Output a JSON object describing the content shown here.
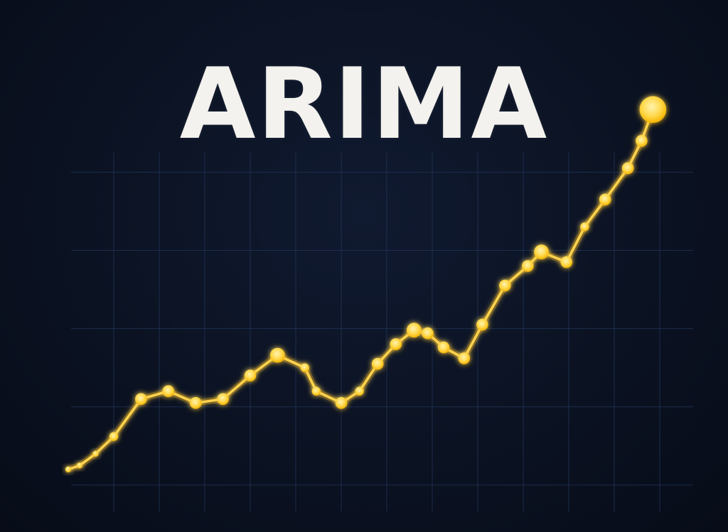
{
  "title": "ARIMA",
  "colors": {
    "background": "#0b1222",
    "title": "#f4f2ee",
    "grid": "#22365a",
    "series": "#ffd34d",
    "glow": "#ffb400"
  },
  "chart_data": {
    "type": "line",
    "title": "ARIMA",
    "xlabel": "",
    "ylabel": "",
    "grid": true,
    "legend": "none",
    "x": [
      0,
      0.25,
      0.6,
      1,
      1.6,
      2.2,
      2.8,
      3.4,
      4.0,
      4.6,
      5.2,
      5.45,
      6.0,
      6.4,
      6.8,
      7.2,
      7.6,
      7.9,
      8.25,
      8.7,
      9.1,
      9.6,
      10.1,
      10.4,
      10.95,
      11.35,
      11.8,
      12.3,
      12.6,
      12.85
    ],
    "series": [
      {
        "values": [
          0.2,
          0.25,
          0.4,
          0.62,
          1.1,
          1.2,
          1.05,
          1.1,
          1.4,
          1.66,
          1.5,
          1.2,
          1.05,
          1.2,
          1.55,
          1.8,
          1.98,
          1.94,
          1.76,
          1.62,
          2.05,
          2.55,
          2.8,
          2.98,
          2.85,
          3.3,
          3.65,
          4.05,
          4.4,
          4.8
        ],
        "marker_sizes": [
          1,
          1,
          1,
          2,
          3,
          3,
          3,
          3,
          3,
          4,
          2,
          2,
          3,
          2,
          3,
          3,
          4,
          3,
          3,
          3,
          3,
          3,
          3,
          4,
          3,
          2,
          3,
          3,
          3,
          8
        ]
      }
    ],
    "xlim": [
      -1.5,
      14.5
    ],
    "ylim": [
      -0.6,
      6.2
    ]
  }
}
